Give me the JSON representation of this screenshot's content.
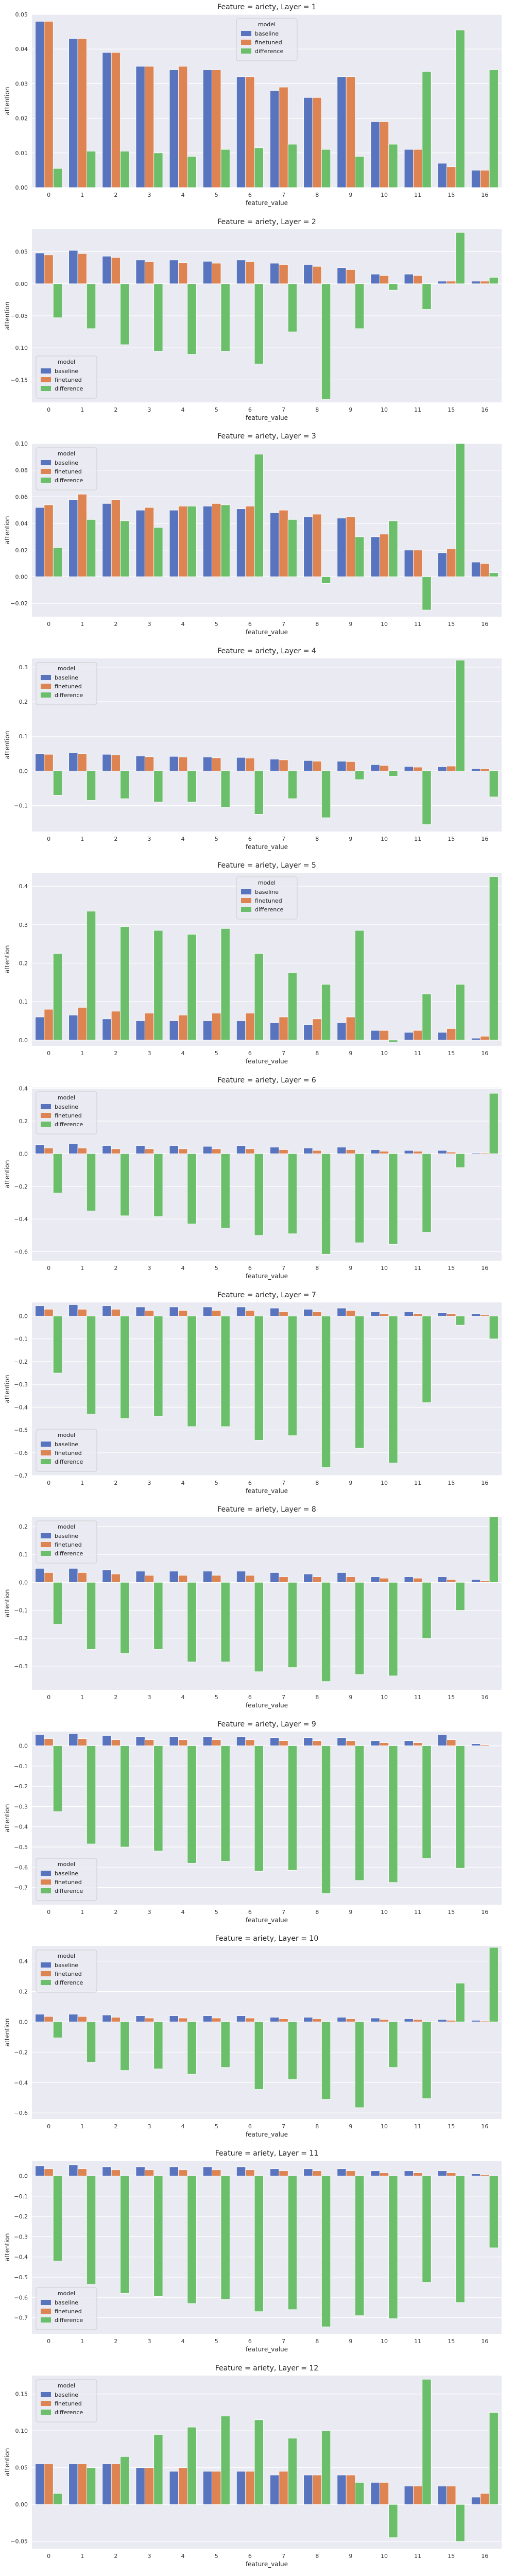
{
  "common": {
    "xlabel": "feature_value",
    "ylabel": "attention",
    "legend_title": "model",
    "categories": [
      "0",
      "1",
      "2",
      "3",
      "4",
      "5",
      "6",
      "7",
      "8",
      "9",
      "10",
      "11",
      "15",
      "16"
    ],
    "series_names": [
      "baseline",
      "finetuned",
      "difference"
    ],
    "colors": {
      "baseline": "#5874bf",
      "finetuned": "#dd8452",
      "difference": "#6cbf6a",
      "plot_bg": "#eaeaf2",
      "grid": "#ffffff"
    }
  },
  "chart_data": [
    {
      "type": "bar",
      "title": "Feature = ariety, Layer = 1",
      "ylim": [
        0,
        0.05
      ],
      "yticks": [
        "0.00",
        "0.01",
        "0.02",
        "0.03",
        "0.04",
        "0.05"
      ],
      "legend": "top-center",
      "series": [
        {
          "name": "baseline",
          "values": [
            0.048,
            0.043,
            0.039,
            0.035,
            0.034,
            0.034,
            0.032,
            0.028,
            0.026,
            0.032,
            0.019,
            0.011,
            0.007,
            0.005
          ]
        },
        {
          "name": "finetuned",
          "values": [
            0.048,
            0.043,
            0.039,
            0.035,
            0.035,
            0.034,
            0.032,
            0.029,
            0.026,
            0.032,
            0.019,
            0.011,
            0.006,
            0.005
          ]
        },
        {
          "name": "difference",
          "values": [
            0.0055,
            0.0105,
            0.0105,
            0.01,
            0.009,
            0.011,
            0.0115,
            0.0125,
            0.011,
            0.009,
            0.0125,
            0.0335,
            0.0455,
            0.034
          ]
        }
      ]
    },
    {
      "type": "bar",
      "title": "Feature = ariety, Layer = 2",
      "ylim": [
        -0.185,
        0.085
      ],
      "yticks": [
        "−0.15",
        "−0.10",
        "−0.05",
        "0.00",
        "0.05"
      ],
      "legend": "bottom-left",
      "series": [
        {
          "name": "baseline",
          "values": [
            0.048,
            0.052,
            0.043,
            0.037,
            0.037,
            0.035,
            0.037,
            0.032,
            0.03,
            0.025,
            0.015,
            0.015,
            0.004,
            0.004
          ]
        },
        {
          "name": "finetuned",
          "values": [
            0.045,
            0.047,
            0.041,
            0.034,
            0.033,
            0.032,
            0.034,
            0.03,
            0.027,
            0.022,
            0.013,
            0.013,
            0.004,
            0.004
          ]
        },
        {
          "name": "difference",
          "values": [
            -0.053,
            -0.07,
            -0.095,
            -0.105,
            -0.11,
            -0.105,
            -0.125,
            -0.075,
            -0.18,
            -0.07,
            -0.01,
            -0.04,
            0.08,
            0.01
          ]
        }
      ]
    },
    {
      "type": "bar",
      "title": "Feature = ariety, Layer = 3",
      "ylim": [
        -0.03,
        0.1
      ],
      "yticks": [
        "−0.02",
        "0.00",
        "0.02",
        "0.04",
        "0.06",
        "0.08",
        "0.10"
      ],
      "legend": "top-left",
      "series": [
        {
          "name": "baseline",
          "values": [
            0.052,
            0.058,
            0.055,
            0.05,
            0.05,
            0.053,
            0.051,
            0.048,
            0.045,
            0.044,
            0.03,
            0.02,
            0.018,
            0.011
          ]
        },
        {
          "name": "finetuned",
          "values": [
            0.054,
            0.062,
            0.058,
            0.052,
            0.053,
            0.055,
            0.053,
            0.05,
            0.047,
            0.045,
            0.032,
            0.02,
            0.021,
            0.01
          ]
        },
        {
          "name": "difference",
          "values": [
            0.022,
            0.043,
            0.042,
            0.037,
            0.053,
            0.054,
            0.092,
            0.043,
            -0.005,
            0.03,
            0.042,
            -0.025,
            0.1,
            0.003
          ]
        }
      ]
    },
    {
      "type": "bar",
      "title": "Feature = ariety, Layer = 4",
      "ylim": [
        -0.175,
        0.325
      ],
      "yticks": [
        "−0.1",
        "0.0",
        "0.1",
        "0.2",
        "0.3"
      ],
      "legend": "top-left",
      "series": [
        {
          "name": "baseline",
          "values": [
            0.05,
            0.052,
            0.048,
            0.043,
            0.042,
            0.04,
            0.039,
            0.034,
            0.03,
            0.028,
            0.018,
            0.013,
            0.012,
            0.007
          ]
        },
        {
          "name": "finetuned",
          "values": [
            0.048,
            0.05,
            0.046,
            0.041,
            0.04,
            0.038,
            0.037,
            0.032,
            0.028,
            0.027,
            0.016,
            0.011,
            0.014,
            0.006
          ]
        },
        {
          "name": "difference",
          "values": [
            -0.07,
            -0.085,
            -0.08,
            -0.09,
            -0.09,
            -0.105,
            -0.125,
            -0.08,
            -0.135,
            -0.025,
            -0.015,
            -0.155,
            0.32,
            -0.075
          ]
        }
      ]
    },
    {
      "type": "bar",
      "title": "Feature = ariety, Layer = 5",
      "ylim": [
        -0.015,
        0.435
      ],
      "yticks": [
        "0.0",
        "0.1",
        "0.2",
        "0.3",
        "0.4"
      ],
      "legend": "top-center",
      "series": [
        {
          "name": "baseline",
          "values": [
            0.06,
            0.065,
            0.055,
            0.05,
            0.05,
            0.05,
            0.05,
            0.045,
            0.04,
            0.045,
            0.025,
            0.02,
            0.02,
            0.005
          ]
        },
        {
          "name": "finetuned",
          "values": [
            0.08,
            0.085,
            0.075,
            0.07,
            0.065,
            0.07,
            0.07,
            0.06,
            0.055,
            0.06,
            0.025,
            0.025,
            0.03,
            0.01
          ]
        },
        {
          "name": "difference",
          "values": [
            0.225,
            0.335,
            0.295,
            0.285,
            0.275,
            0.29,
            0.225,
            0.175,
            0.145,
            0.285,
            -0.005,
            0.12,
            0.145,
            0.425
          ]
        }
      ]
    },
    {
      "type": "bar",
      "title": "Feature = ariety, Layer = 6",
      "ylim": [
        -0.655,
        0.405
      ],
      "yticks": [
        "−0.6",
        "−0.4",
        "−0.2",
        "0.0",
        "0.2",
        "0.4"
      ],
      "legend": "top-left",
      "series": [
        {
          "name": "baseline",
          "values": [
            0.055,
            0.06,
            0.05,
            0.05,
            0.05,
            0.045,
            0.05,
            0.04,
            0.035,
            0.04,
            0.025,
            0.02,
            0.02,
            0.005
          ]
        },
        {
          "name": "finetuned",
          "values": [
            0.035,
            0.035,
            0.03,
            0.03,
            0.03,
            0.03,
            0.03,
            0.025,
            0.02,
            0.025,
            0.015,
            0.015,
            0.01,
            0.005
          ]
        },
        {
          "name": "difference",
          "values": [
            -0.24,
            -0.35,
            -0.38,
            -0.385,
            -0.43,
            -0.455,
            -0.5,
            -0.49,
            -0.615,
            -0.545,
            -0.555,
            -0.48,
            -0.085,
            0.37
          ]
        }
      ]
    },
    {
      "type": "bar",
      "title": "Feature = ariety, Layer = 7",
      "ylim": [
        -0.7,
        0.06
      ],
      "yticks": [
        "−0.7",
        "−0.6",
        "−0.5",
        "−0.4",
        "−0.3",
        "−0.2",
        "−0.1",
        "0.0"
      ],
      "legend": "bottom-left",
      "series": [
        {
          "name": "baseline",
          "values": [
            0.045,
            0.05,
            0.045,
            0.04,
            0.04,
            0.04,
            0.04,
            0.035,
            0.03,
            0.035,
            0.02,
            0.02,
            0.015,
            0.01
          ]
        },
        {
          "name": "finetuned",
          "values": [
            0.03,
            0.03,
            0.03,
            0.025,
            0.025,
            0.025,
            0.025,
            0.02,
            0.02,
            0.025,
            0.01,
            0.01,
            0.01,
            0.005
          ]
        },
        {
          "name": "difference",
          "values": [
            -0.25,
            -0.43,
            -0.45,
            -0.44,
            -0.485,
            -0.485,
            -0.545,
            -0.525,
            -0.665,
            -0.58,
            -0.645,
            -0.38,
            -0.04,
            -0.1
          ]
        }
      ]
    },
    {
      "type": "bar",
      "title": "Feature = ariety, Layer = 8",
      "ylim": [
        -0.385,
        0.235
      ],
      "yticks": [
        "−0.3",
        "−0.2",
        "−0.1",
        "0.0",
        "0.1",
        "0.2"
      ],
      "legend": "top-left",
      "series": [
        {
          "name": "baseline",
          "values": [
            0.05,
            0.05,
            0.045,
            0.04,
            0.04,
            0.04,
            0.04,
            0.035,
            0.03,
            0.035,
            0.02,
            0.02,
            0.02,
            0.01
          ]
        },
        {
          "name": "finetuned",
          "values": [
            0.035,
            0.035,
            0.03,
            0.025,
            0.025,
            0.025,
            0.025,
            0.02,
            0.02,
            0.02,
            0.015,
            0.015,
            0.01,
            0.005
          ]
        },
        {
          "name": "difference",
          "values": [
            -0.15,
            -0.24,
            -0.255,
            -0.24,
            -0.285,
            -0.285,
            -0.32,
            -0.305,
            -0.355,
            -0.33,
            -0.335,
            -0.2,
            -0.1,
            0.235
          ]
        }
      ]
    },
    {
      "type": "bar",
      "title": "Feature = ariety, Layer = 9",
      "ylim": [
        -0.785,
        0.07
      ],
      "yticks": [
        "−0.7",
        "−0.6",
        "−0.5",
        "−0.4",
        "−0.3",
        "−0.2",
        "−0.1",
        "0.0"
      ],
      "legend": "bottom-left",
      "series": [
        {
          "name": "baseline",
          "values": [
            0.055,
            0.06,
            0.05,
            0.045,
            0.045,
            0.045,
            0.045,
            0.04,
            0.04,
            0.04,
            0.025,
            0.025,
            0.055,
            0.01
          ]
        },
        {
          "name": "finetuned",
          "values": [
            0.035,
            0.035,
            0.03,
            0.03,
            0.03,
            0.03,
            0.03,
            0.025,
            0.025,
            0.025,
            0.015,
            0.015,
            0.03,
            0.005
          ]
        },
        {
          "name": "difference",
          "values": [
            -0.325,
            -0.485,
            -0.5,
            -0.52,
            -0.58,
            -0.57,
            -0.62,
            -0.615,
            -0.73,
            -0.665,
            -0.675,
            -0.555,
            -0.605,
            0.0
          ]
        }
      ]
    },
    {
      "type": "bar",
      "title": "Feature = ariety, Layer = 10",
      "ylim": [
        -0.64,
        0.5
      ],
      "yticks": [
        "−0.6",
        "−0.4",
        "−0.2",
        "0.0",
        "0.2",
        "0.4"
      ],
      "legend": "top-left",
      "series": [
        {
          "name": "baseline",
          "values": [
            0.05,
            0.05,
            0.045,
            0.04,
            0.04,
            0.04,
            0.04,
            0.03,
            0.03,
            0.03,
            0.025,
            0.02,
            0.015,
            0.01
          ]
        },
        {
          "name": "finetuned",
          "values": [
            0.035,
            0.035,
            0.03,
            0.025,
            0.025,
            0.025,
            0.025,
            0.02,
            0.02,
            0.02,
            0.015,
            0.015,
            0.01,
            0.005
          ]
        },
        {
          "name": "difference",
          "values": [
            -0.105,
            -0.265,
            -0.32,
            -0.31,
            -0.345,
            -0.3,
            -0.445,
            -0.38,
            -0.51,
            -0.565,
            -0.3,
            -0.505,
            0.255,
            0.49
          ]
        }
      ]
    },
    {
      "type": "bar",
      "title": "Feature = ariety, Layer = 11",
      "ylim": [
        -0.78,
        0.075
      ],
      "yticks": [
        "−0.7",
        "−0.6",
        "−0.5",
        "−0.4",
        "−0.3",
        "−0.2",
        "−0.1",
        "0.0"
      ],
      "legend": "bottom-left",
      "series": [
        {
          "name": "baseline",
          "values": [
            0.05,
            0.055,
            0.045,
            0.045,
            0.045,
            0.045,
            0.045,
            0.035,
            0.035,
            0.035,
            0.025,
            0.025,
            0.025,
            0.01
          ]
        },
        {
          "name": "finetuned",
          "values": [
            0.035,
            0.035,
            0.03,
            0.03,
            0.03,
            0.03,
            0.03,
            0.025,
            0.025,
            0.025,
            0.015,
            0.015,
            0.015,
            0.005
          ]
        },
        {
          "name": "difference",
          "values": [
            -0.42,
            -0.535,
            -0.58,
            -0.595,
            -0.63,
            -0.61,
            -0.67,
            -0.66,
            -0.745,
            -0.69,
            -0.705,
            -0.525,
            -0.625,
            -0.355
          ]
        }
      ]
    },
    {
      "type": "bar",
      "title": "Feature = ariety, Layer = 12",
      "ylim": [
        -0.06,
        0.175
      ],
      "yticks": [
        "−0.05",
        "0.00",
        "0.05",
        "0.10",
        "0.15"
      ],
      "legend": "top-left",
      "series": [
        {
          "name": "baseline",
          "values": [
            0.055,
            0.055,
            0.055,
            0.05,
            0.045,
            0.045,
            0.045,
            0.04,
            0.04,
            0.04,
            0.03,
            0.025,
            0.025,
            0.01
          ]
        },
        {
          "name": "finetuned",
          "values": [
            0.055,
            0.055,
            0.055,
            0.05,
            0.05,
            0.045,
            0.045,
            0.045,
            0.04,
            0.04,
            0.03,
            0.025,
            0.025,
            0.015
          ]
        },
        {
          "name": "difference",
          "values": [
            0.015,
            0.05,
            0.065,
            0.095,
            0.105,
            0.12,
            0.115,
            0.09,
            0.1,
            0.03,
            -0.045,
            0.17,
            -0.05,
            0.125
          ]
        }
      ]
    }
  ]
}
